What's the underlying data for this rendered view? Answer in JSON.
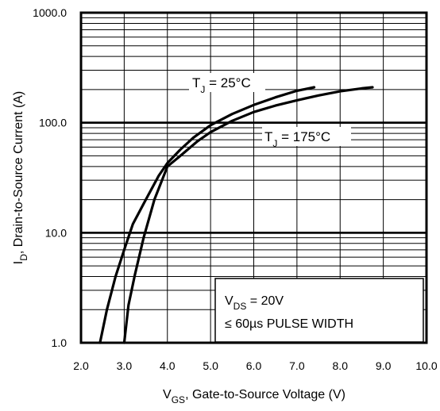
{
  "chart_data": {
    "type": "line",
    "title": "",
    "xlabel": {
      "main": "V",
      "sub": "GS",
      "rest": ", Gate-to-Source Voltage (V)"
    },
    "ylabel": {
      "main": "I",
      "sub": "D",
      "rest": ", Drain-to-Source Current  (A)"
    },
    "x_ticks": [
      "2.0",
      "3.0",
      "4.0",
      "5.0",
      "6.0",
      "7.0",
      "8.0",
      "9.0",
      "10.0"
    ],
    "y_ticks": [
      "1.0",
      "10.0",
      "100.0",
      "1000.0"
    ],
    "xlim": [
      2.0,
      10.0
    ],
    "ylim": [
      1.0,
      1000.0
    ],
    "y_scale": "log",
    "grid": true,
    "series": [
      {
        "name_main": "T",
        "name_sub": "J",
        "name_rest": " = 25°C",
        "x": [
          2.44,
          2.6,
          2.8,
          3.0,
          3.2,
          3.5,
          3.8,
          4.0,
          4.3,
          4.6,
          5.0,
          5.5,
          6.0,
          6.5,
          7.0,
          7.4
        ],
        "y": [
          1.0,
          2.0,
          4.0,
          7.0,
          12.0,
          20.0,
          33.0,
          43.0,
          57.0,
          73.0,
          95.0,
          120.0,
          145.0,
          170.0,
          195.0,
          210.0
        ]
      },
      {
        "name_main": "T",
        "name_sub": "J",
        "name_rest": " = 175°C",
        "x": [
          3.0,
          3.1,
          3.25,
          3.45,
          3.7,
          4.0,
          4.3,
          4.7,
          5.0,
          5.5,
          6.0,
          6.5,
          7.0,
          7.5,
          8.0,
          8.5,
          8.75
        ],
        "y": [
          1.0,
          2.2,
          4.2,
          9.0,
          20.0,
          40.0,
          50.0,
          68.0,
          82.0,
          104.0,
          125.0,
          143.0,
          160.0,
          177.0,
          193.0,
          205.0,
          210.0
        ]
      }
    ],
    "annotation": {
      "line1": {
        "main": "V",
        "sub": "DS",
        "rest": " = 20V"
      },
      "line2": "≤ 60µs PULSE WIDTH"
    }
  }
}
